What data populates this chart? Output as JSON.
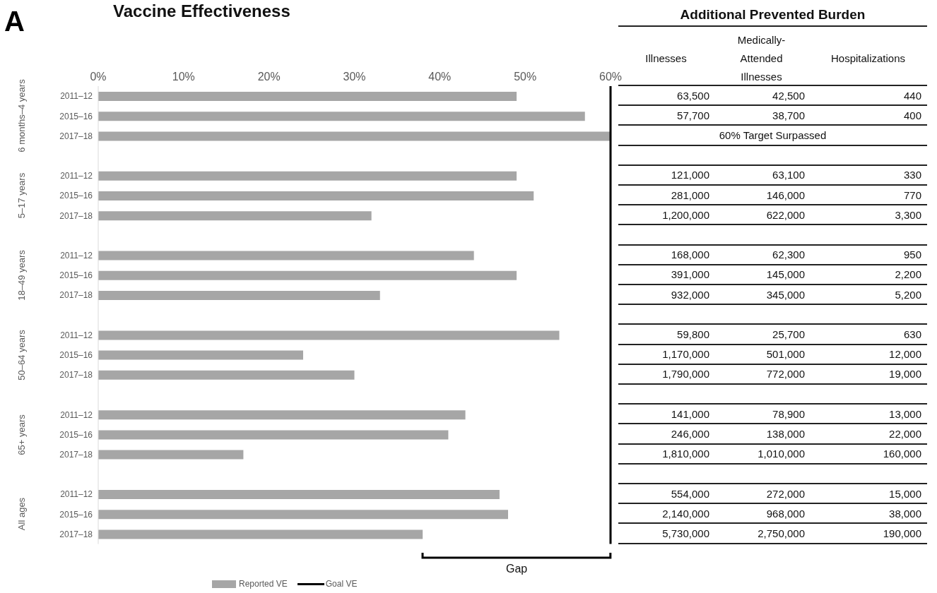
{
  "chart_data": [
    {
      "type": "bar",
      "orientation": "horizontal",
      "title": "Vaccine Effectiveness",
      "categories": [
        "2011–12",
        "2015–16",
        "2017–18",
        null,
        "2011–12",
        "2015–16",
        "2017–18",
        null,
        "2011–12",
        "2015–16",
        "2017–18",
        null,
        "2011–12",
        "2015–16",
        "2017–18",
        null,
        "2011–12",
        "2015–16",
        "2017–18",
        null,
        "2011–12",
        "2015–16",
        "2017–18"
      ],
      "series": [
        {
          "name": "Reported VE",
          "color": "#a6a6a6",
          "values": [
            49,
            57,
            60,
            null,
            49,
            51,
            32,
            null,
            44,
            49,
            33,
            null,
            54,
            24,
            30,
            null,
            43,
            41,
            17,
            null,
            47,
            48,
            38
          ]
        }
      ],
      "xlim": [
        0,
        60
      ],
      "xticks": [
        {
          "value": 0,
          "label": "0%"
        },
        {
          "value": 10,
          "label": "10%"
        },
        {
          "value": 20,
          "label": "20%"
        },
        {
          "value": 30,
          "label": "30%"
        },
        {
          "value": 40,
          "label": "40%"
        },
        {
          "value": 50,
          "label": "50%"
        },
        {
          "value": 60,
          "label": "60%"
        }
      ],
      "ref_lines": [
        {
          "axis": "x",
          "value": 60,
          "label": "Goal VE",
          "color": "#000000"
        }
      ],
      "legend": "bottom",
      "annotations": [
        "A",
        "6 months–4 years",
        "5–17 years",
        "18–49 years",
        "50–64 years",
        "65+ years",
        "All ages",
        "Gap"
      ]
    },
    {
      "type": "other",
      "title": "Additional Prevented Burden",
      "categories": [
        "Illnesses",
        "Medically-Attended Illnesses",
        "Hospitalizations"
      ],
      "cell_labels": [
        [
          "63,500",
          "42,500",
          "440"
        ],
        [
          "57,700",
          "38,700",
          "400"
        ],
        [
          null,
          "60% Target Surpassed",
          null
        ],
        [
          null,
          null,
          null
        ],
        [
          "121,000",
          "63,100",
          "330"
        ],
        [
          "281,000",
          "146,000",
          "770"
        ],
        [
          "1,200,000",
          "622,000",
          "3,300"
        ],
        [
          null,
          null,
          null
        ],
        [
          "168,000",
          "62,300",
          "950"
        ],
        [
          "391,000",
          "145,000",
          "2,200"
        ],
        [
          "932,000",
          "345,000",
          "5,200"
        ],
        [
          null,
          null,
          null
        ],
        [
          "59,800",
          "25,700",
          "630"
        ],
        [
          "1,170,000",
          "501,000",
          "12,000"
        ],
        [
          "1,790,000",
          "772,000",
          "19,000"
        ],
        [
          null,
          null,
          null
        ],
        [
          "141,000",
          "78,900",
          "13,000"
        ],
        [
          "246,000",
          "138,000",
          "22,000"
        ],
        [
          "1,810,000",
          "1,010,000",
          "160,000"
        ],
        [
          null,
          null,
          null
        ],
        [
          "554,000",
          "272,000",
          "15,000"
        ],
        [
          "2,140,000",
          "968,000",
          "38,000"
        ],
        [
          "5,730,000",
          "2,750,000",
          "190,000"
        ]
      ]
    }
  ]
}
